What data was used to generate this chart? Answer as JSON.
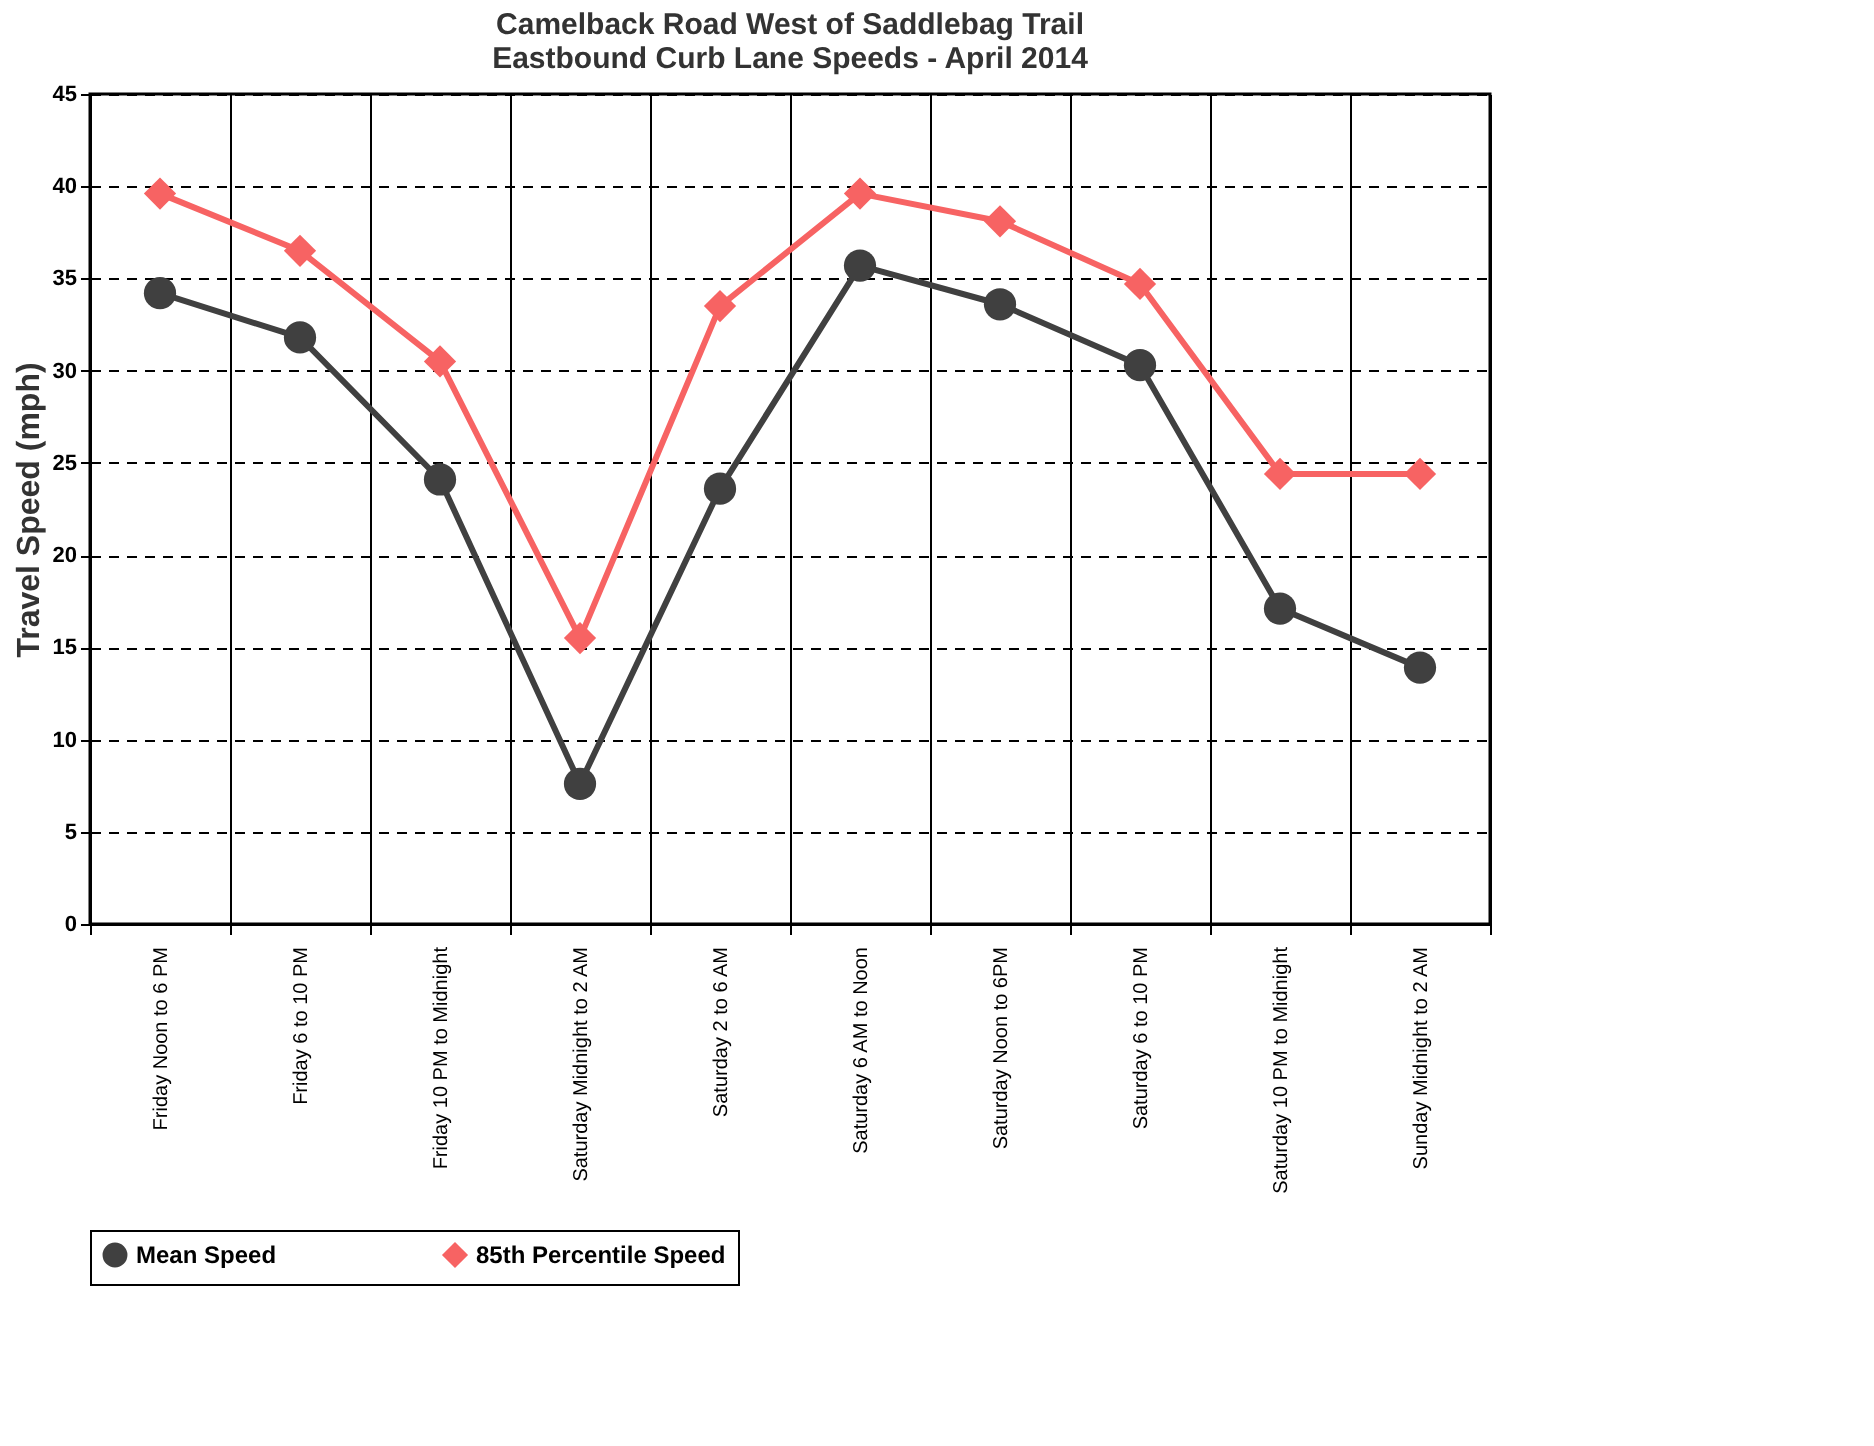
{
  "chart_data": {
    "type": "line",
    "title": [
      "Camelback Road West of Saddlebag Trail",
      "Eastbound Curb Lane Speeds - April 2014"
    ],
    "ylabel": "Travel Speed (mph)",
    "categories": [
      "Friday Noon to 6 PM",
      "Friday 6 to 10 PM",
      "Friday 10 PM to Midnight",
      "Saturday Midnight to 2 AM",
      "Saturday 2 to 6 AM",
      "Saturday 6 AM to Noon",
      "Saturday Noon to 6PM",
      "Saturday 6 to 10 PM",
      "Saturday 10 PM to Midnight",
      "Sunday Midnight to 2 AM"
    ],
    "series": [
      {
        "name": "Mean Speed",
        "color": "#404040",
        "marker": "circle",
        "values": [
          34.2,
          31.8,
          24.1,
          7.6,
          23.6,
          35.7,
          33.6,
          30.3,
          17.1,
          13.9
        ]
      },
      {
        "name": "85th Percentile Speed",
        "color": "#f76363",
        "marker": "diamond",
        "values": [
          39.6,
          36.5,
          30.5,
          15.5,
          33.5,
          39.6,
          38.1,
          34.7,
          24.4,
          24.4
        ]
      }
    ],
    "ylim": [
      0,
      45
    ],
    "yticks": [
      0,
      5,
      10,
      15,
      20,
      25,
      30,
      35,
      40,
      45
    ],
    "grid": true,
    "legend": "bottom",
    "line_style": "solid"
  }
}
